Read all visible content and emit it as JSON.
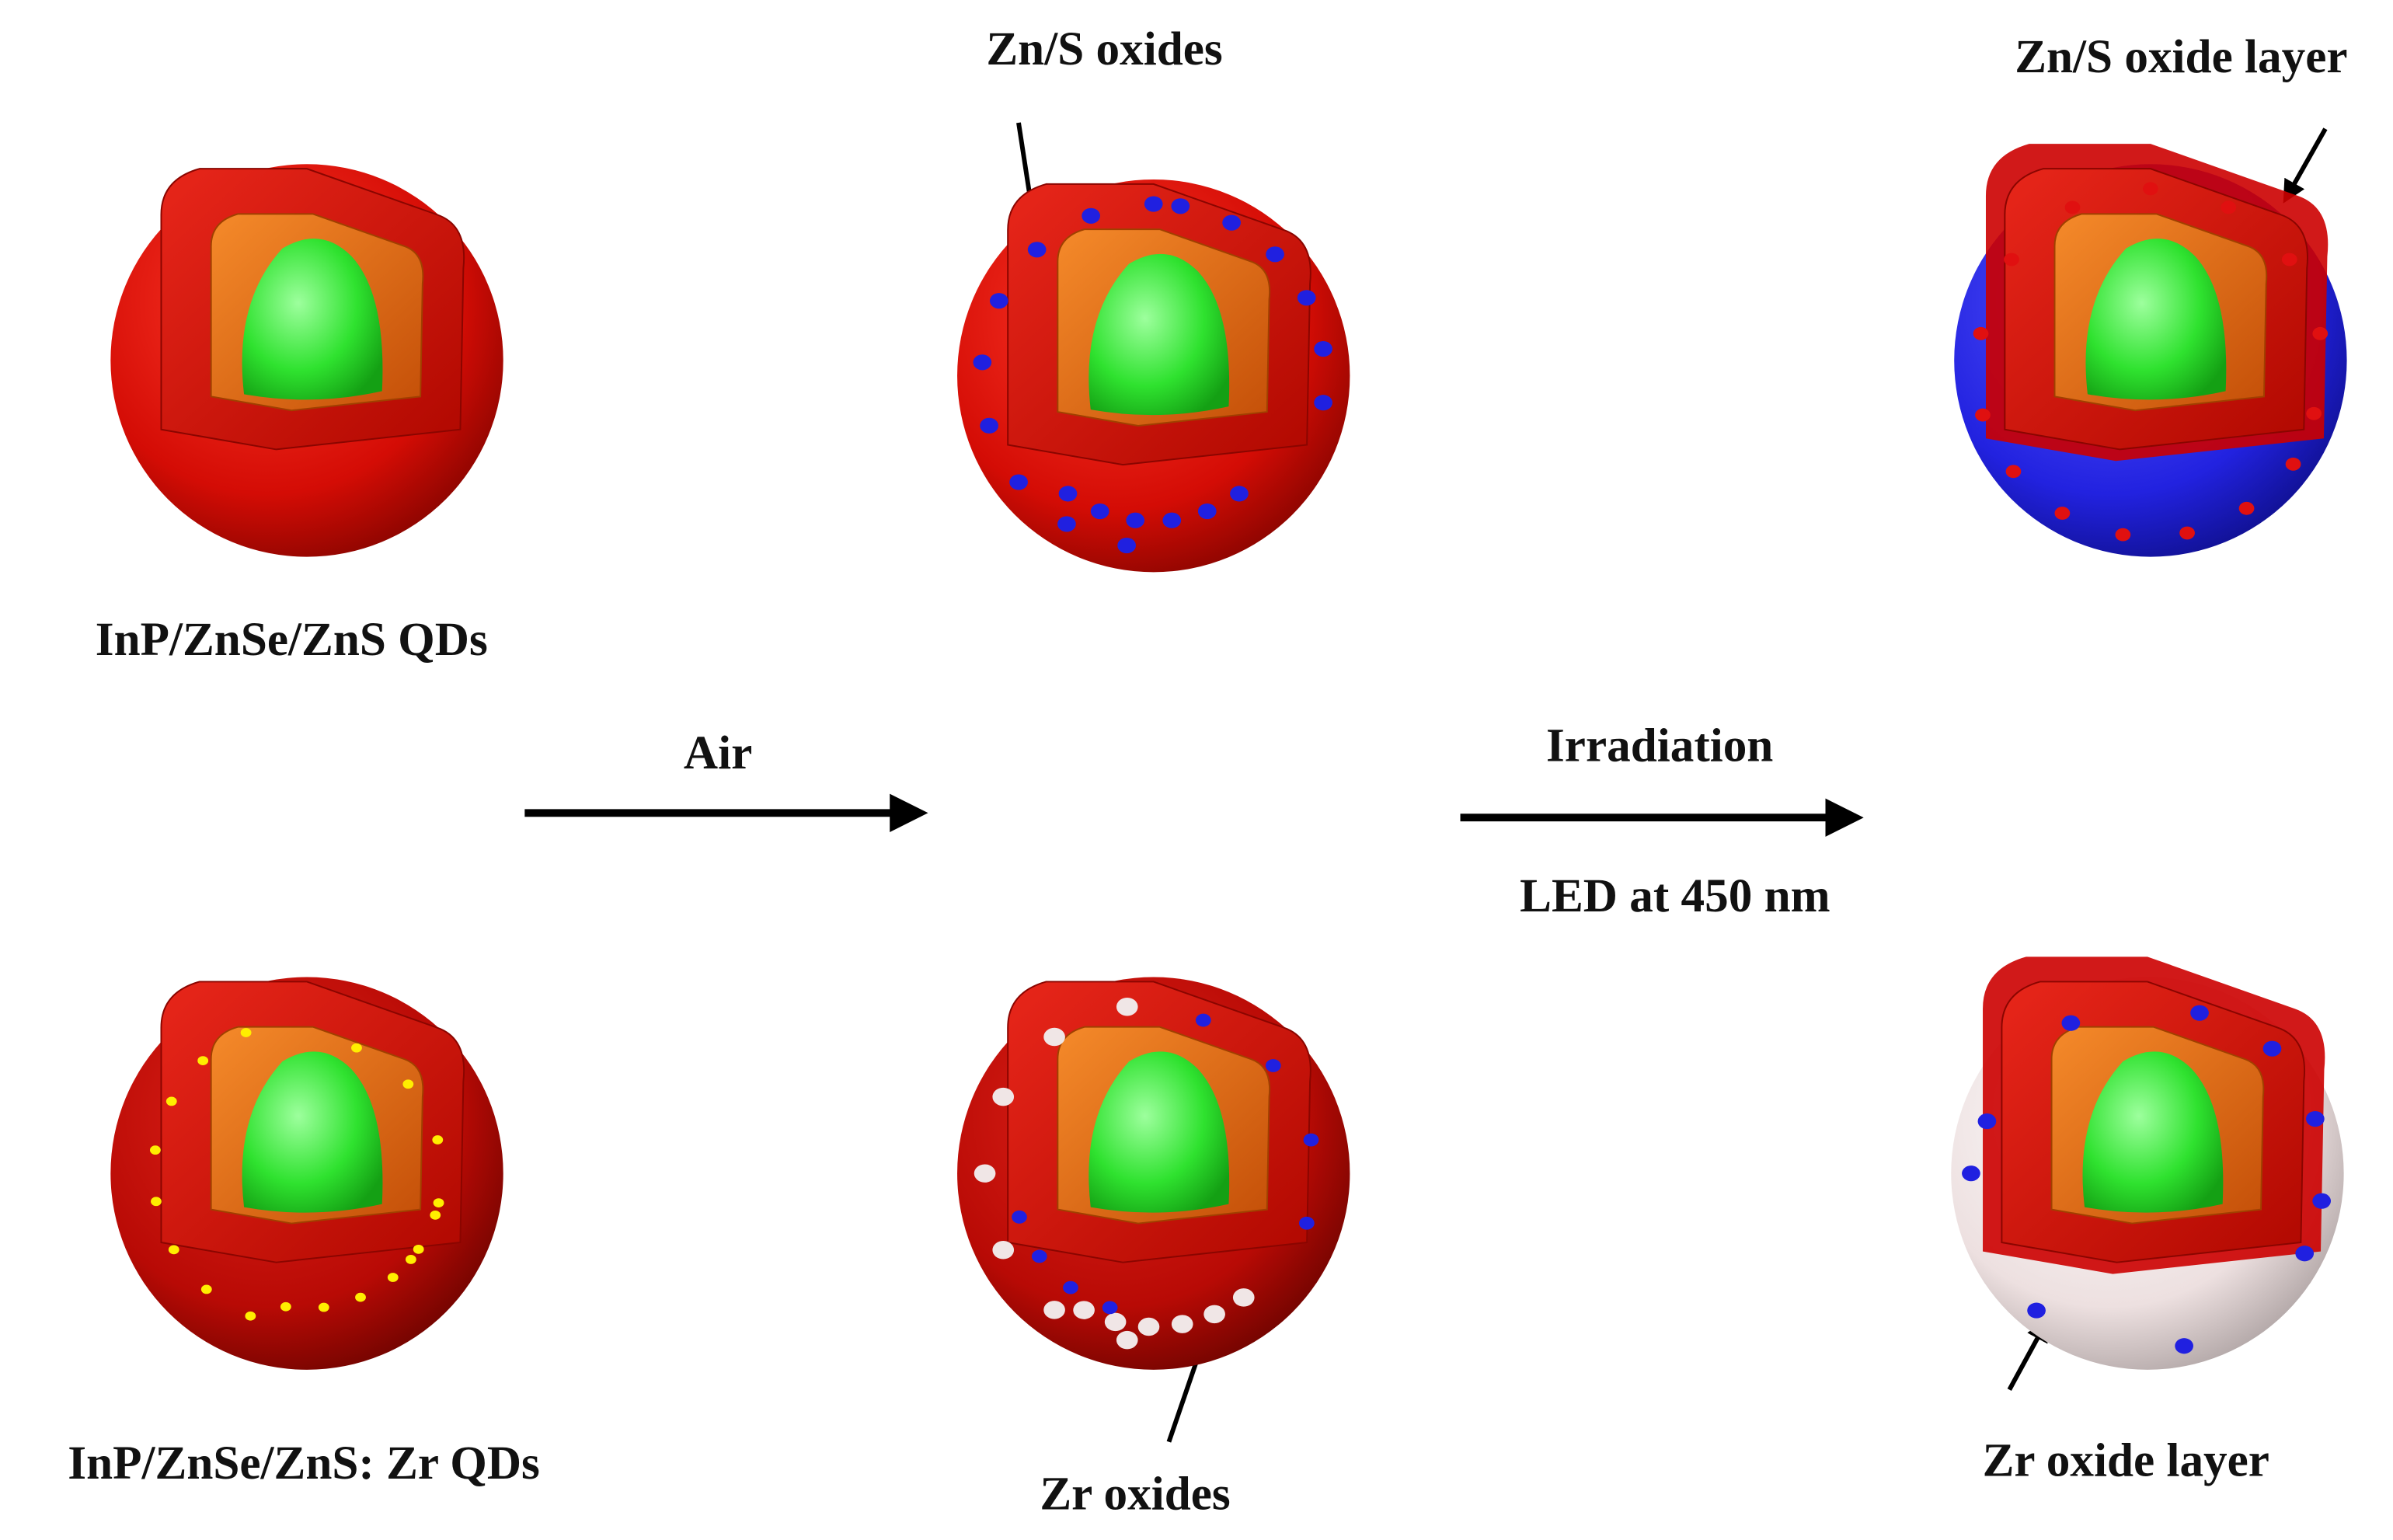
{
  "annotations": {
    "zns_oxides": "Zn/S oxides",
    "zns_oxide_layer": "Zn/S oxide layer",
    "zr_oxides": "Zr oxides",
    "zr_oxide_layer": "Zr oxide layer"
  },
  "rows": [
    {
      "label": "InP/ZnSe/ZnS QDs"
    },
    {
      "label": "InP/ZnSe/ZnS: Zr QDs"
    }
  ],
  "arrows": [
    {
      "label": "Air"
    },
    {
      "label": "Irradiation",
      "sublabel": "LED at 450 nm"
    }
  ]
}
